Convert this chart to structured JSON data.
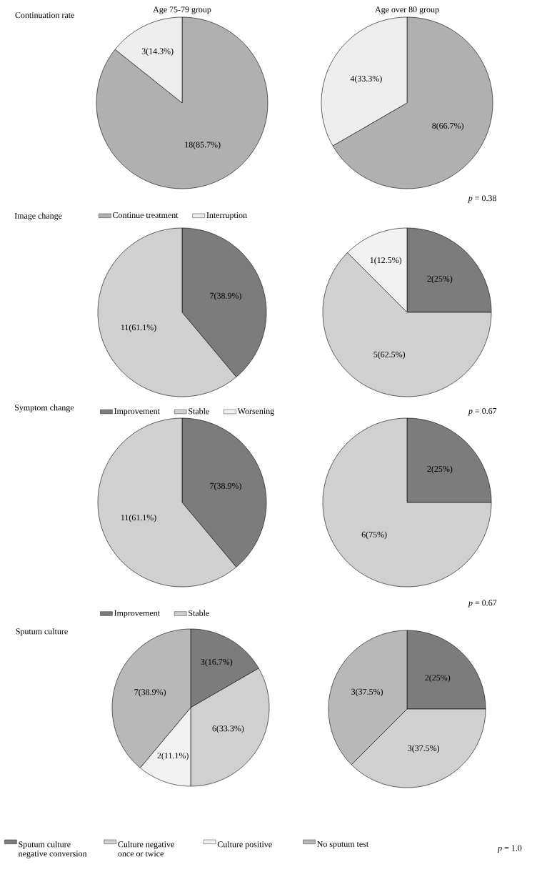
{
  "chart_data": [
    {
      "type": "pie",
      "title": "Age 75-79 group",
      "subtitle": "Continuation rate",
      "categories": [
        "Continue treatment",
        "Interruption"
      ],
      "values": [
        18,
        3
      ],
      "colors": [
        "#b0b0b0",
        "#eeeeee"
      ],
      "value_labels": [
        "18(85.7%)",
        "3(14.3%)"
      ],
      "legend": "bottom"
    },
    {
      "type": "pie",
      "title": "Age over 80 group",
      "categories": [
        null,
        null
      ],
      "values": [
        8,
        4
      ],
      "colors": [
        "#b0b0b0",
        "#eeeeee"
      ],
      "value_labels": [
        "8(66.7%)",
        "4(33.3%)"
      ],
      "annotations": [
        "*p* = 0.38"
      ]
    },
    {
      "type": "pie",
      "subtitle": "Image change",
      "categories": [
        "Improvement",
        "Stable",
        "Worsening"
      ],
      "values": [
        7,
        11,
        0
      ],
      "colors": [
        "#7c7c7c",
        "#d0d0d0",
        "#f2f2f2"
      ],
      "value_labels": [
        "7(38.9%)",
        "11(61.1%)",
        null
      ],
      "legend": "bottom"
    },
    {
      "type": "pie",
      "categories": [
        null,
        null,
        null
      ],
      "values": [
        2,
        5,
        1
      ],
      "colors": [
        "#7c7c7c",
        "#d0d0d0",
        "#f2f2f2"
      ],
      "value_labels": [
        "2(25%)",
        "5(62.5%)",
        "1(12.5%)"
      ],
      "annotations": [
        "*p* = 0.67"
      ]
    },
    {
      "type": "pie",
      "subtitle": "Symptom change",
      "categories": [
        "Improvement",
        "Stable"
      ],
      "values": [
        7,
        11
      ],
      "colors": [
        "#7c7c7c",
        "#d0d0d0"
      ],
      "value_labels": [
        "7(38.9%)",
        "11(61.1%)"
      ],
      "legend": "bottom"
    },
    {
      "type": "pie",
      "categories": [
        null,
        null
      ],
      "values": [
        2,
        6
      ],
      "colors": [
        "#7c7c7c",
        "#d0d0d0"
      ],
      "value_labels": [
        "2(25%)",
        "6(75%)"
      ],
      "annotations": [
        "*p* = 0.67"
      ]
    },
    {
      "type": "pie",
      "subtitle": "Sputum culture",
      "categories": [
        "Sputum culture negative conversion",
        "Culture negative once or twice",
        "Culture positive",
        "No sputum test"
      ],
      "values": [
        3,
        6,
        2,
        7
      ],
      "colors": [
        "#7c7c7c",
        "#d0d0d0",
        "#f2f2f2",
        "#b8b8b8"
      ],
      "value_labels": [
        "3(16.7%)",
        "6(33.3%)",
        "2(11.1%)",
        "7(38.9%)"
      ],
      "legend": "bottom"
    },
    {
      "type": "pie",
      "categories": [
        null,
        null,
        null
      ],
      "values": [
        2,
        3,
        3
      ],
      "colors": [
        "#7c7c7c",
        "#d0d0d0",
        "#b8b8b8"
      ],
      "value_labels": [
        "2(25%)",
        "3(37.5%)",
        "3(37.5%)"
      ],
      "annotations": [
        "*p* = 1.0"
      ]
    }
  ]
}
